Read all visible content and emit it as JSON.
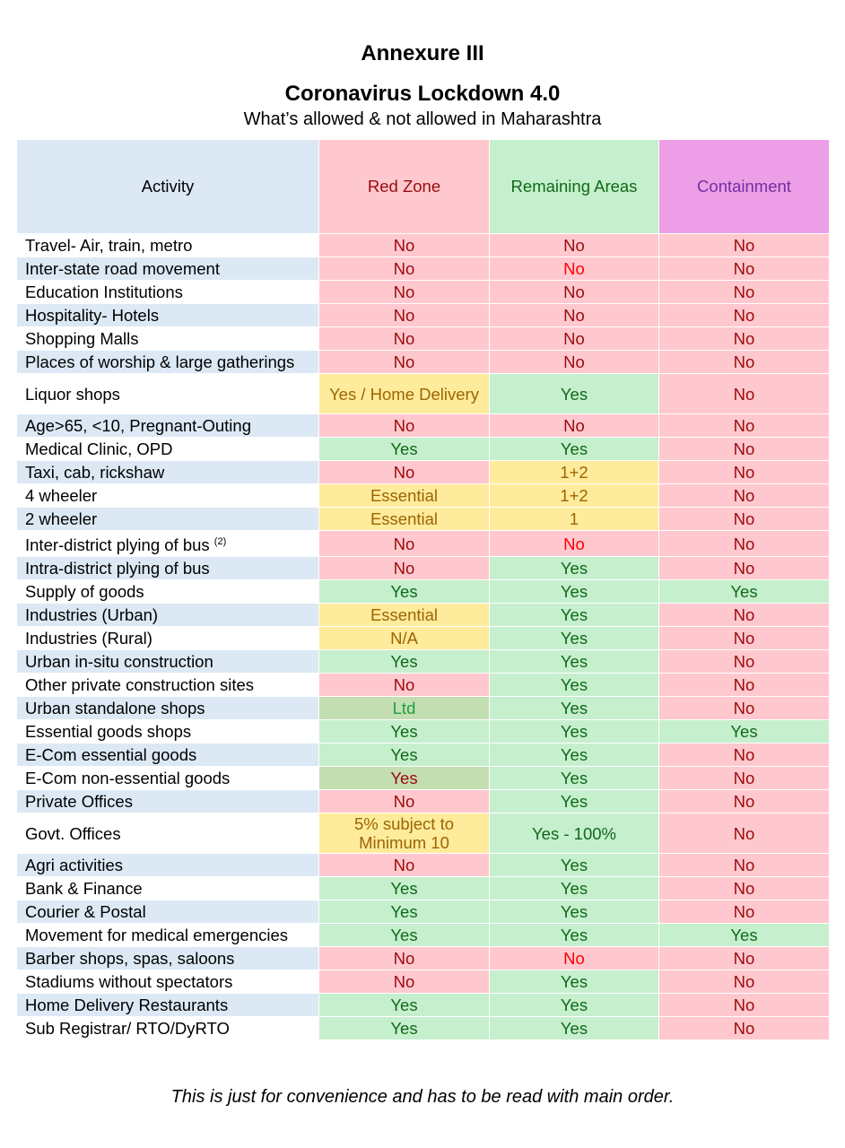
{
  "header": {
    "title": "Annexure III",
    "subtitle": "Coronavirus Lockdown 4.0",
    "tagline": "What’s allowed & not allowed in Maharashtra"
  },
  "columns": [
    "Activity",
    "Red Zone",
    "Remaining Areas",
    "Containment"
  ],
  "rows": [
    {
      "activity": "Travel- Air, train, metro",
      "red": "No",
      "remaining": "No",
      "containment": "No"
    },
    {
      "activity": "Inter-state road movement",
      "red": "No",
      "remaining": "No",
      "containment": "No"
    },
    {
      "activity": "Education Institutions",
      "red": "No",
      "remaining": "No",
      "containment": "No"
    },
    {
      "activity": "Hospitality- Hotels",
      "red": "No",
      "remaining": "No",
      "containment": "No"
    },
    {
      "activity": "Shopping Malls",
      "red": "No",
      "remaining": "No",
      "containment": "No"
    },
    {
      "activity": "Places of worship & large gatherings",
      "red": "No",
      "remaining": "No",
      "containment": "No"
    },
    {
      "activity": "Liquor shops",
      "red": "Yes / Home Delivery",
      "remaining": "Yes",
      "containment": "No"
    },
    {
      "activity": "Age>65, <10, Pregnant-Outing",
      "red": "No",
      "remaining": "No",
      "containment": "No"
    },
    {
      "activity": "Medical Clinic, OPD",
      "red": "Yes",
      "remaining": "Yes",
      "containment": "No"
    },
    {
      "activity": "Taxi, cab, rickshaw",
      "red": "No",
      "remaining": "1+2",
      "containment": "No"
    },
    {
      "activity": "4 wheeler",
      "red": "Essential",
      "remaining": "1+2",
      "containment": "No"
    },
    {
      "activity": "2 wheeler",
      "red": "Essential",
      "remaining": "1",
      "containment": "No"
    },
    {
      "activity": "Inter-district plying of bus",
      "sup": "(2)",
      "red": "No",
      "remaining": "No",
      "containment": "No"
    },
    {
      "activity": "Intra-district plying of bus",
      "red": "No",
      "remaining": "Yes",
      "containment": "No"
    },
    {
      "activity": "Supply of goods",
      "red": "Yes",
      "remaining": "Yes",
      "containment": "Yes"
    },
    {
      "activity": "Industries (Urban)",
      "red": "Essential",
      "remaining": "Yes",
      "containment": "No"
    },
    {
      "activity": "Industries (Rural)",
      "red": "N/A",
      "remaining": "Yes",
      "containment": "No"
    },
    {
      "activity": "Urban in-situ construction",
      "red": "Yes",
      "remaining": "Yes",
      "containment": "No"
    },
    {
      "activity": "Other private construction sites",
      "red": "No",
      "remaining": "Yes",
      "containment": "No"
    },
    {
      "activity": "Urban standalone shops",
      "red": "Ltd",
      "remaining": "Yes",
      "containment": "No"
    },
    {
      "activity": "Essential goods shops",
      "red": "Yes",
      "remaining": "Yes",
      "containment": "Yes"
    },
    {
      "activity": "E-Com essential goods",
      "red": "Yes",
      "remaining": "Yes",
      "containment": "No"
    },
    {
      "activity": "E-Com non-essential goods",
      "red": "Yes",
      "remaining": "Yes",
      "containment": "No"
    },
    {
      "activity": "Private Offices",
      "red": "No",
      "remaining": "Yes",
      "containment": "No"
    },
    {
      "activity": "Govt. Offices",
      "red": "5% subject to Minimum 10",
      "remaining": "Yes - 100%",
      "containment": "No"
    },
    {
      "activity": "Agri activities",
      "red": "No",
      "remaining": "Yes",
      "containment": "No"
    },
    {
      "activity": "Bank & Finance",
      "red": "Yes",
      "remaining": "Yes",
      "containment": "No"
    },
    {
      "activity": "Courier & Postal",
      "red": "Yes",
      "remaining": "Yes",
      "containment": "No"
    },
    {
      "activity": "Movement for medical emergencies",
      "red": "Yes",
      "remaining": "Yes",
      "containment": "Yes"
    },
    {
      "activity": "Barber shops, spas, saloons",
      "red": "No",
      "remaining": "No",
      "containment": "No"
    },
    {
      "activity": "Stadiums without spectators",
      "red": "No",
      "remaining": "Yes",
      "containment": "No"
    },
    {
      "activity": "Home Delivery Restaurants",
      "red": "Yes",
      "remaining": "Yes",
      "containment": "No"
    },
    {
      "activity": "Sub Registrar/ RTO/DyRTO",
      "red": "Yes",
      "remaining": "Yes",
      "containment": "No"
    }
  ],
  "footer": "This is just for convenience and has to be read with main order."
}
